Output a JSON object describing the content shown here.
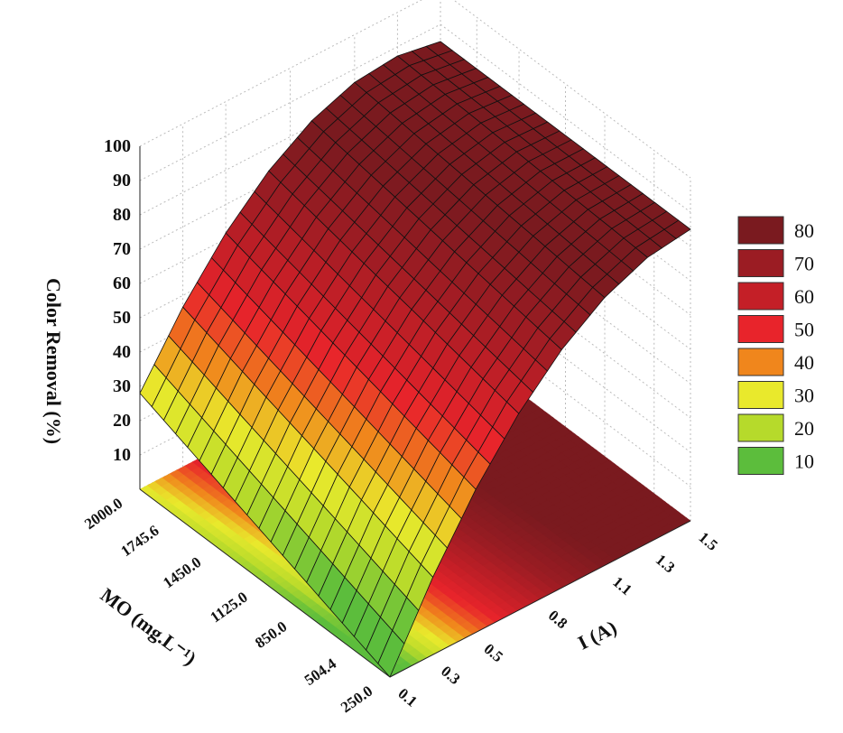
{
  "chart_data": {
    "type": "surface",
    "title": "",
    "xlabel": "I (A)",
    "ylabel": "MO (mg.L⁻¹)",
    "zlabel": "Color Removal (%)",
    "x_ticks": [
      "0.1",
      "0.3",
      "0.5",
      "0.8",
      "1.1",
      "1.3",
      "1.5"
    ],
    "x_tick_values": [
      0.1,
      0.3,
      0.5,
      0.8,
      1.1,
      1.3,
      1.5
    ],
    "y_ticks": [
      "250.0",
      "504.4",
      "850.0",
      "1125.0",
      "1450.0",
      "1745.6",
      "2000.0"
    ],
    "y_tick_values": [
      250,
      504.4,
      850,
      1125,
      1450,
      1745.6,
      2000
    ],
    "z_ticks": [
      "10",
      "20",
      "30",
      "40",
      "50",
      "60",
      "70",
      "80",
      "90",
      "100"
    ],
    "xlim": [
      0.1,
      1.5
    ],
    "ylim": [
      250,
      2000
    ],
    "zlim": [
      0,
      100
    ],
    "grid": true,
    "legend_position": "right",
    "legend": [
      {
        "label": "80",
        "color": "#7a1a1f"
      },
      {
        "label": "70",
        "color": "#9b1c23"
      },
      {
        "label": "60",
        "color": "#c41f27"
      },
      {
        "label": "50",
        "color": "#e8242b"
      },
      {
        "label": "40",
        "color": "#f0861c"
      },
      {
        "label": "30",
        "color": "#e9e92c"
      },
      {
        "label": "20",
        "color": "#b6da2b"
      },
      {
        "label": "10",
        "color": "#5cbd3c"
      }
    ],
    "grid_x": [
      0.1,
      0.3,
      0.5,
      0.7,
      0.9,
      1.1,
      1.3,
      1.5
    ],
    "grid_y": [
      250,
      500,
      750,
      1000,
      1250,
      1500,
      1750,
      2000
    ],
    "z": [
      [
        0,
        22.6,
        41.7,
        57.3,
        69.4,
        78.1,
        83.3,
        85
      ],
      [
        4,
        26.0,
        44.6,
        59.6,
        71.1,
        79.2,
        83.9,
        85
      ],
      [
        8,
        29.5,
        47.4,
        61.9,
        72.8,
        80.4,
        84.4,
        85
      ],
      [
        12,
        32.9,
        50.3,
        64.2,
        74.5,
        81.5,
        85.0,
        85
      ],
      [
        16,
        36.3,
        53.1,
        66.4,
        76.3,
        82.7,
        85.6,
        85
      ],
      [
        20,
        39.7,
        56.0,
        68.7,
        78.0,
        83.8,
        86.2,
        85
      ],
      [
        24,
        43.2,
        58.8,
        71.0,
        79.7,
        85.0,
        86.7,
        85
      ],
      [
        28,
        46.6,
        61.7,
        73.3,
        81.4,
        86.1,
        87.3,
        85
      ]
    ]
  }
}
